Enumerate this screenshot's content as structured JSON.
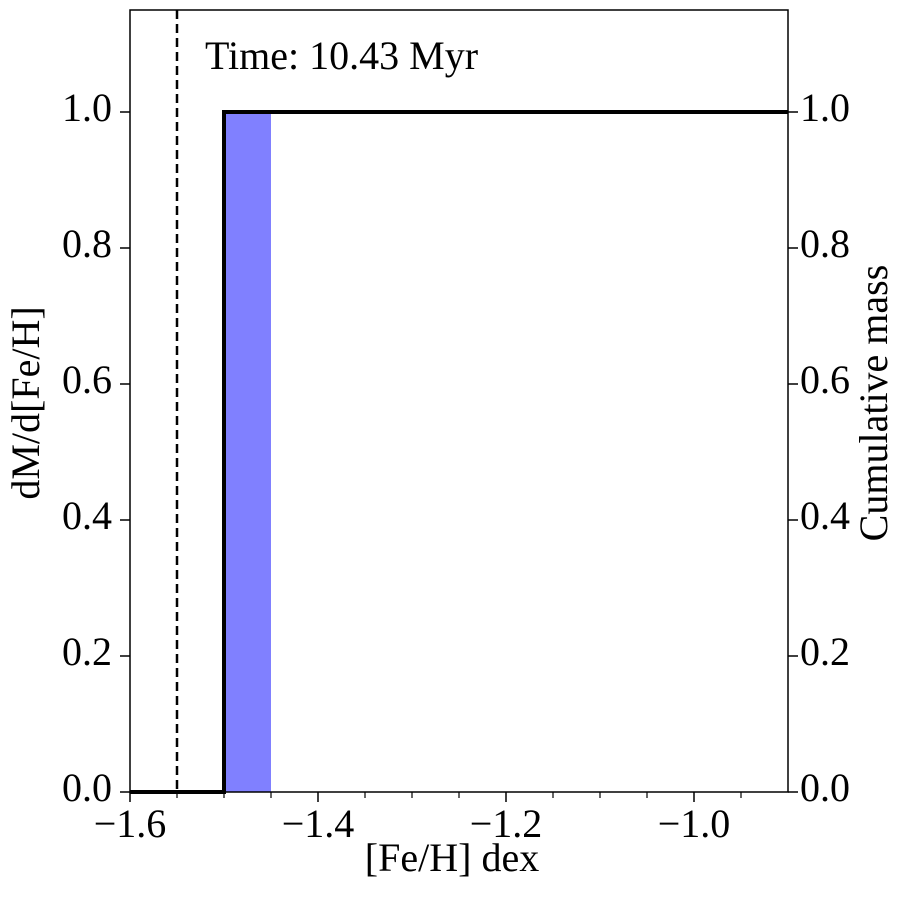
{
  "chart_data": {
    "type": "histogram",
    "annotation": "Time: 10.43 Myr",
    "xlabel": "[Fe/H] dex",
    "ylabel": "dM/d[Fe/H]",
    "y2label": "Cumulative mass",
    "bins": [
      -1.5,
      -1.45
    ],
    "values": [
      1.0
    ],
    "color": "#8080ff",
    "cumulative_x": [
      -1.6,
      -1.5,
      -1.5,
      -0.9
    ],
    "cumulative_y": [
      0,
      0,
      1.0,
      1.0
    ],
    "cumulative_color": "#000000",
    "vline": -1.55,
    "xlim": [
      -1.6,
      -0.9
    ],
    "xticks": [
      {
        "value": -1.6,
        "label": "−1.6"
      },
      {
        "value": -1.4,
        "label": "−1.4"
      },
      {
        "value": -1.2,
        "label": "−1.2"
      },
      {
        "value": -1.0,
        "label": "−1.0"
      }
    ],
    "xminorticks": [
      -1.55,
      -1.5,
      -1.45,
      -1.35,
      -1.3,
      -1.25,
      -1.15,
      -1.1,
      -1.05,
      -0.95
    ],
    "ylim": [
      0,
      1.15
    ],
    "yticks": [
      {
        "value": 0,
        "label": "0.0"
      },
      {
        "value": 0.2,
        "label": "0.2"
      },
      {
        "value": 0.4,
        "label": "0.4"
      },
      {
        "value": 0.6,
        "label": "0.6"
      },
      {
        "value": 0.8,
        "label": "0.8"
      },
      {
        "value": 1.0,
        "label": "1.0"
      }
    ],
    "y2lim": [
      0,
      1.15
    ],
    "y2ticks": [
      {
        "value": 0,
        "label": "0.0"
      },
      {
        "value": 0.2,
        "label": "0.2"
      },
      {
        "value": 0.4,
        "label": "0.4"
      },
      {
        "value": 0.6,
        "label": "0.6"
      },
      {
        "value": 0.8,
        "label": "0.8"
      },
      {
        "value": 1.0,
        "label": "1.0"
      }
    ]
  }
}
